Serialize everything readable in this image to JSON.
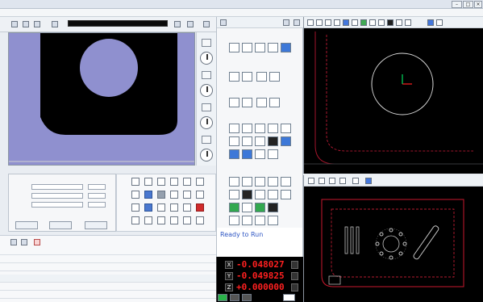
{
  "status": {
    "ready": "Ready to Run"
  },
  "dro": {
    "x_label": "X",
    "y_label": "Y",
    "z_label": "Z",
    "x_value": "-0.048027",
    "y_value": "-0.049825",
    "z_value": "+0.000000"
  }
}
